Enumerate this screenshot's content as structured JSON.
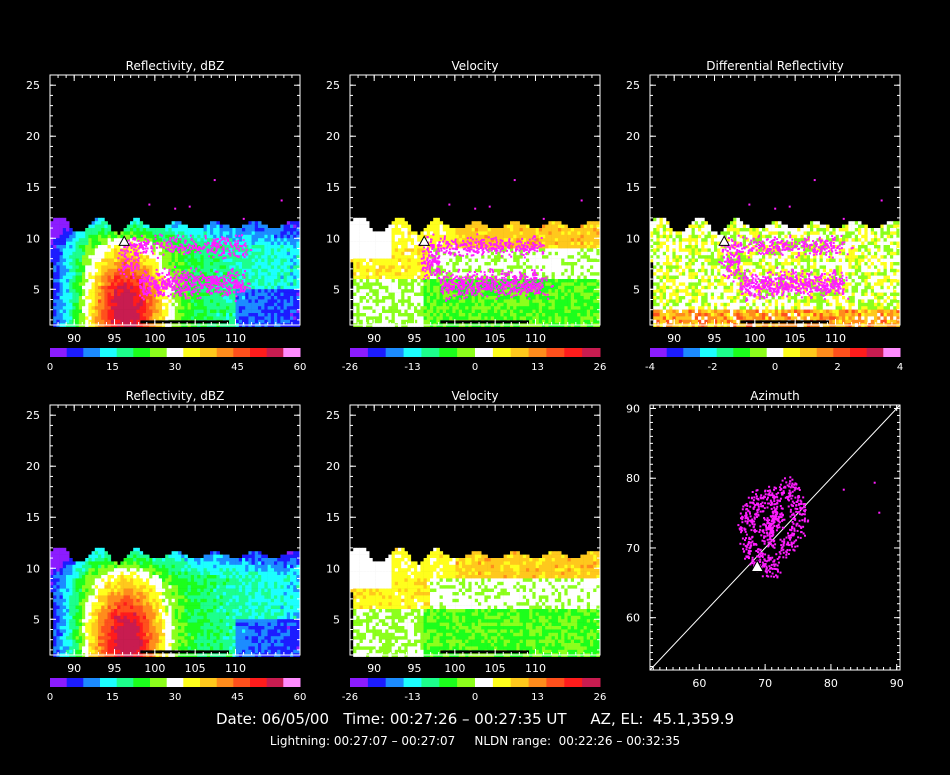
{
  "footer": {
    "date_label": "Date:",
    "date": "06/05/00",
    "time_label": "Time:",
    "time_range": "00:27:26 – 00:27:35 UT",
    "azel_label": "AZ, EL:",
    "azel": "45.1,359.9",
    "lightning_label": "Lightning:",
    "lightning_range": "00:27:07 – 00:27:07",
    "nldn_label": "NLDN range:",
    "nldn_range": "00:22:26 – 00:32:35"
  },
  "chart_data": [
    {
      "type": "heatmap",
      "panel": "reflectivity-top",
      "title": "Reflectivity, dBZ",
      "xlabel": "",
      "ylabel": "",
      "xlim": [
        87,
        118
      ],
      "ylim": [
        1.5,
        26
      ],
      "xticks": [
        90,
        95,
        100,
        105,
        110
      ],
      "yticks": [
        5,
        10,
        15,
        20,
        25
      ],
      "lightning_overlay": true,
      "marker": {
        "x": 96.2,
        "y": 9.6
      },
      "colorbar": {
        "min": 0,
        "max": 60,
        "ticks": [
          0,
          15,
          30,
          45,
          60
        ],
        "colors": [
          "#8c1cff",
          "#1c1cff",
          "#1c8cff",
          "#1cffff",
          "#1cff8c",
          "#1cff1c",
          "#8cff1c",
          "#ffffff",
          "#ffff1c",
          "#ffc81c",
          "#ff8c1c",
          "#ff501c",
          "#ff1c1c",
          "#c81c50",
          "#ff8cff"
        ]
      }
    },
    {
      "type": "heatmap",
      "panel": "velocity-top",
      "title": "Velocity",
      "xlabel": "",
      "ylabel": "",
      "xlim": [
        87,
        118
      ],
      "ylim": [
        1.5,
        26
      ],
      "xticks": [
        90,
        95,
        100,
        105,
        110
      ],
      "yticks": [
        5,
        10,
        15,
        20,
        25
      ],
      "lightning_overlay": true,
      "marker": {
        "x": 96.2,
        "y": 9.6
      },
      "colorbar": {
        "min": -26,
        "max": 26,
        "ticks": [
          -26,
          -13,
          0,
          13,
          26
        ],
        "colors": [
          "#8c1cff",
          "#1c1cff",
          "#1c8cff",
          "#1cffff",
          "#1cff8c",
          "#1cff1c",
          "#8cff1c",
          "#ffffff",
          "#ffff1c",
          "#ffc81c",
          "#ff8c1c",
          "#ff501c",
          "#ff1c1c",
          "#c81c50"
        ]
      }
    },
    {
      "type": "heatmap",
      "panel": "zdr-top",
      "title": "Differential Reflectivity",
      "xlabel": "",
      "ylabel": "",
      "xlim": [
        87,
        118
      ],
      "ylim": [
        1.5,
        26
      ],
      "xticks": [
        90,
        95,
        100,
        105,
        110
      ],
      "yticks": [
        5,
        10,
        15,
        20,
        25
      ],
      "lightning_overlay": true,
      "marker": {
        "x": 96.2,
        "y": 9.6
      },
      "colorbar": {
        "min": -4,
        "max": 4,
        "ticks": [
          -4,
          -2,
          0,
          2,
          4
        ],
        "colors": [
          "#8c1cff",
          "#1c1cff",
          "#1c8cff",
          "#1cffff",
          "#1cff8c",
          "#1cff1c",
          "#8cff1c",
          "#ffffff",
          "#ffff1c",
          "#ffc81c",
          "#ff8c1c",
          "#ff501c",
          "#ff1c1c",
          "#c81c50",
          "#ff8cff"
        ]
      }
    },
    {
      "type": "heatmap",
      "panel": "reflectivity-bottom",
      "title": "Reflectivity, dBZ",
      "xlabel": "",
      "ylabel": "",
      "xlim": [
        87,
        118
      ],
      "ylim": [
        1.5,
        26
      ],
      "xticks": [
        90,
        95,
        100,
        105,
        110
      ],
      "yticks": [
        5,
        10,
        15,
        20,
        25
      ],
      "lightning_overlay": false,
      "colorbar": {
        "min": 0,
        "max": 60,
        "ticks": [
          0,
          15,
          30,
          45,
          60
        ],
        "colors": [
          "#8c1cff",
          "#1c1cff",
          "#1c8cff",
          "#1cffff",
          "#1cff8c",
          "#1cff1c",
          "#8cff1c",
          "#ffffff",
          "#ffff1c",
          "#ffc81c",
          "#ff8c1c",
          "#ff501c",
          "#ff1c1c",
          "#c81c50",
          "#ff8cff"
        ]
      }
    },
    {
      "type": "heatmap",
      "panel": "velocity-bottom",
      "title": "Velocity",
      "xlabel": "",
      "ylabel": "",
      "xlim": [
        87,
        118
      ],
      "ylim": [
        1.5,
        26
      ],
      "xticks": [
        90,
        95,
        100,
        105,
        110
      ],
      "yticks": [
        5,
        10,
        15,
        20,
        25
      ],
      "lightning_overlay": false,
      "colorbar": {
        "min": -26,
        "max": 26,
        "ticks": [
          -26,
          -13,
          0,
          13,
          26
        ],
        "colors": [
          "#8c1cff",
          "#1c1cff",
          "#1c8cff",
          "#1cffff",
          "#1cff8c",
          "#1cff1c",
          "#8cff1c",
          "#ffffff",
          "#ffff1c",
          "#ffc81c",
          "#ff8c1c",
          "#ff501c",
          "#ff1c1c",
          "#c81c50"
        ]
      }
    },
    {
      "type": "scatter",
      "panel": "azimuth",
      "title": "Azimuth",
      "xlabel": "",
      "ylabel": "",
      "xlim": [
        52.5,
        90.5
      ],
      "ylim": [
        52.5,
        90.5
      ],
      "xticks": [
        60,
        70,
        80,
        90
      ],
      "yticks": [
        60,
        70,
        80,
        90
      ],
      "reference_line": [
        [
          52.5,
          52.5
        ],
        [
          90.5,
          90.5
        ]
      ],
      "marker": {
        "x": 68.8,
        "y": 67.2
      },
      "cluster": {
        "center": [
          71.2,
          72.0
        ],
        "xspread": [
          65,
          76.5
        ],
        "yspread": [
          65.5,
          81
        ]
      },
      "outliers": [
        [
          81.8,
          78.5
        ],
        [
          86.5,
          79.5
        ],
        [
          87.2,
          75.2
        ]
      ]
    }
  ],
  "colors": {
    "lightning": "#ff1cff",
    "background": "#000000",
    "axes": "#ffffff"
  }
}
